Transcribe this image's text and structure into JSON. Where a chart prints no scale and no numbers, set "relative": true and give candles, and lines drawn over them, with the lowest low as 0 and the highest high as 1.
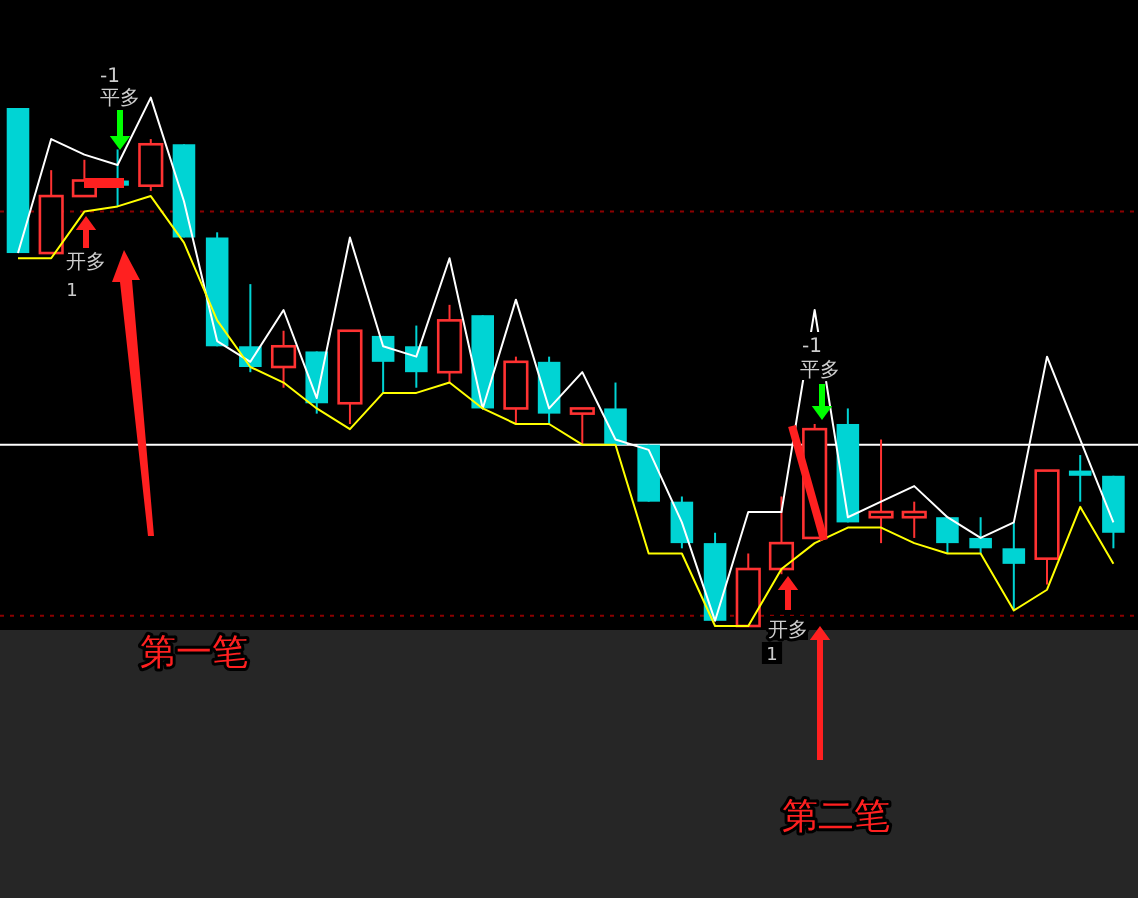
{
  "chart_data": {
    "type": "candlestick",
    "relative": true,
    "categories": [
      null,
      null,
      null,
      null,
      null,
      null,
      null,
      null,
      null,
      null,
      null,
      null,
      null,
      null,
      null,
      null,
      null,
      null,
      null,
      null,
      null,
      null,
      null,
      null,
      null,
      null,
      null,
      null,
      null,
      null,
      null,
      null,
      null,
      null
    ],
    "ohlc": [
      [
        1.0,
        1.0,
        0.72,
        0.72
      ],
      [
        0.72,
        0.88,
        0.72,
        0.83
      ],
      [
        0.83,
        0.9,
        0.83,
        0.86
      ],
      [
        0.86,
        0.92,
        0.81,
        0.85
      ],
      [
        0.85,
        0.94,
        0.84,
        0.93
      ],
      [
        0.93,
        0.93,
        0.75,
        0.75
      ],
      [
        0.75,
        0.76,
        0.54,
        0.54
      ],
      [
        0.54,
        0.66,
        0.49,
        0.5
      ],
      [
        0.5,
        0.57,
        0.46,
        0.54
      ],
      [
        0.53,
        0.53,
        0.41,
        0.43
      ],
      [
        0.43,
        0.57,
        0.39,
        0.57
      ],
      [
        0.56,
        0.56,
        0.45,
        0.51
      ],
      [
        0.54,
        0.58,
        0.46,
        0.49
      ],
      [
        0.49,
        0.62,
        0.47,
        0.59
      ],
      [
        0.6,
        0.6,
        0.42,
        0.42
      ],
      [
        0.42,
        0.52,
        0.39,
        0.51
      ],
      [
        0.51,
        0.52,
        0.39,
        0.41
      ],
      [
        0.41,
        0.42,
        0.35,
        0.42
      ],
      [
        0.42,
        0.47,
        0.35,
        0.35
      ],
      [
        0.35,
        0.35,
        0.24,
        0.24
      ],
      [
        0.24,
        0.25,
        0.15,
        0.16
      ],
      [
        0.16,
        0.18,
        0.01,
        0.01
      ],
      [
        0.0,
        0.14,
        0.0,
        0.11
      ],
      [
        0.11,
        0.25,
        0.1,
        0.16
      ],
      [
        0.17,
        0.39,
        0.17,
        0.38
      ],
      [
        0.39,
        0.42,
        0.2,
        0.2
      ],
      [
        0.21,
        0.36,
        0.16,
        0.22
      ],
      [
        0.21,
        0.24,
        0.17,
        0.22
      ],
      [
        0.21,
        0.21,
        0.14,
        0.16
      ],
      [
        0.17,
        0.21,
        0.14,
        0.15
      ],
      [
        0.15,
        0.2,
        0.03,
        0.12
      ],
      [
        0.13,
        0.3,
        0.08,
        0.3
      ],
      [
        0.3,
        0.33,
        0.24,
        0.29
      ],
      [
        0.29,
        0.29,
        0.15,
        0.18
      ]
    ],
    "colors": [
      "#00d4d4",
      "#ff3232",
      "#ff3232",
      "#00d4d4",
      "#ff3232",
      "#00d4d4",
      "#00d4d4",
      "#00d4d4",
      "#ff3232",
      "#00d4d4",
      "#ff3232",
      "#00d4d4",
      "#00d4d4",
      "#ff3232",
      "#00d4d4",
      "#ff3232",
      "#00d4d4",
      "#ff3232",
      "#00d4d4",
      "#00d4d4",
      "#00d4d4",
      "#00d4d4",
      "#ff3232",
      "#ff3232",
      "#ff3232",
      "#00d4d4",
      "#ff3232",
      "#ff3232",
      "#00d4d4",
      "#00d4d4",
      "#00d4d4",
      "#ff3232",
      "#00d4d4",
      "#00d4d4"
    ],
    "series": [
      {
        "type": "line",
        "color": "#ffffff",
        "values": [
          0.72,
          0.94,
          0.91,
          0.89,
          1.02,
          0.82,
          0.55,
          0.51,
          0.61,
          0.44,
          0.75,
          0.54,
          0.52,
          0.71,
          0.42,
          0.63,
          0.42,
          0.49,
          0.36,
          0.34,
          0.2,
          0.01,
          0.22,
          0.22,
          0.61,
          0.21,
          0.24,
          0.27,
          0.21,
          0.17,
          0.2,
          0.52,
          0.36,
          0.2
        ]
      },
      {
        "type": "line",
        "color": "#ffff00",
        "values": [
          0.71,
          0.71,
          0.8,
          0.81,
          0.83,
          0.74,
          0.59,
          0.5,
          0.47,
          0.42,
          0.38,
          0.45,
          0.45,
          0.47,
          0.42,
          0.39,
          0.39,
          0.35,
          0.35,
          0.14,
          0.14,
          0.0,
          0.0,
          0.11,
          0.16,
          0.19,
          0.19,
          0.16,
          0.14,
          0.14,
          0.03,
          0.07,
          0.23,
          0.12
        ]
      }
    ],
    "ref_lines": [
      {
        "axis": "y",
        "value": 0.35,
        "color": "#ffffff",
        "line_style": "solid"
      },
      {
        "axis": "y",
        "value": 0.8,
        "color": "#8b0000",
        "line_style": "dotted"
      },
      {
        "axis": "y",
        "value": 0.02,
        "color": "#8b0000",
        "line_style": "dotted"
      }
    ],
    "marker": "none",
    "line_style": "solid",
    "grid": false,
    "annotations": [
      "-1",
      "平多",
      "开多",
      "1",
      "-1",
      "平多",
      "开多",
      "1",
      "第一笔",
      "第二笔"
    ]
  }
}
